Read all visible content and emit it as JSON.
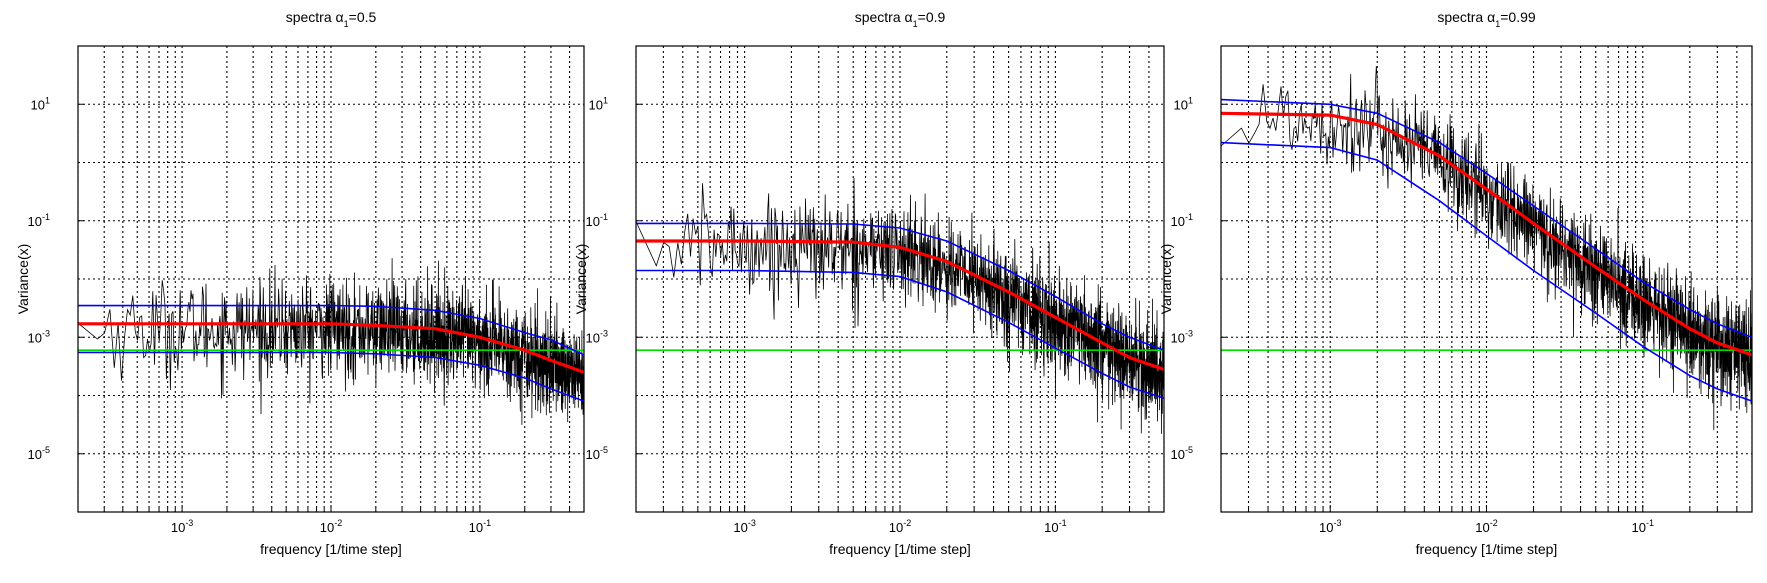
{
  "chart_data": [
    {
      "type": "line",
      "title_prefix": "spectra α",
      "title_sub": "1",
      "title_suffix": "=0.5",
      "xlabel": "frequency [1/time step]",
      "ylabel": "Variance(x)",
      "x_scale": "log",
      "y_scale": "log",
      "xlim": [
        0.0002,
        0.5
      ],
      "ylim": [
        1e-06,
        100
      ],
      "grid": true,
      "xticks": [
        {
          "value": 0.001,
          "base": "10",
          "exp": "-3"
        },
        {
          "value": 0.01,
          "base": "10",
          "exp": "-2"
        },
        {
          "value": 0.1,
          "base": "10",
          "exp": "-1"
        }
      ],
      "yticks": [
        {
          "value": 1e-05,
          "base": "10",
          "exp": "-5"
        },
        {
          "value": 0.001,
          "base": "10",
          "exp": "-3"
        },
        {
          "value": 0.1,
          "base": "10",
          "exp": "-1"
        },
        {
          "value": 10,
          "base": "10",
          "exp": "1"
        }
      ],
      "colors": {
        "theory": "#ff0000",
        "bounds": "#0000ff",
        "reference": "#00dd00",
        "spectrum": "#000000"
      },
      "series": [
        {
          "role": "theoretical",
          "x": [
            0.0002,
            0.001,
            0.01,
            0.02,
            0.05,
            0.1,
            0.2,
            0.3,
            0.5
          ],
          "y": [
            0.0017,
            0.0017,
            0.0017,
            0.0016,
            0.0014,
            0.001,
            0.0006,
            0.0004,
            0.00025
          ]
        },
        {
          "role": "upper-bound",
          "x": [
            0.0002,
            0.001,
            0.01,
            0.02,
            0.05,
            0.1,
            0.2,
            0.3,
            0.5
          ],
          "y": [
            0.0035,
            0.0035,
            0.0035,
            0.0034,
            0.0029,
            0.0021,
            0.0012,
            0.0009,
            0.0005
          ]
        },
        {
          "role": "lower-bound",
          "x": [
            0.0002,
            0.001,
            0.01,
            0.02,
            0.05,
            0.1,
            0.2,
            0.3,
            0.5
          ],
          "y": [
            0.00055,
            0.00055,
            0.00055,
            0.00052,
            0.00045,
            0.00033,
            0.0002,
            0.00013,
            8e-05
          ]
        },
        {
          "role": "reference-level",
          "x": [
            0.0002,
            0.5
          ],
          "y": [
            0.0006,
            0.0006
          ]
        }
      ]
    },
    {
      "type": "line",
      "title_prefix": "spectra α",
      "title_sub": "1",
      "title_suffix": "=0.9",
      "xlabel": "frequency [1/time step]",
      "ylabel": "Variance(x)",
      "x_scale": "log",
      "y_scale": "log",
      "xlim": [
        0.0002,
        0.5
      ],
      "ylim": [
        1e-06,
        100
      ],
      "grid": true,
      "xticks": [
        {
          "value": 0.001,
          "base": "10",
          "exp": "-3"
        },
        {
          "value": 0.01,
          "base": "10",
          "exp": "-2"
        },
        {
          "value": 0.1,
          "base": "10",
          "exp": "-1"
        }
      ],
      "yticks": [
        {
          "value": 1e-05,
          "base": "10",
          "exp": "-5"
        },
        {
          "value": 0.001,
          "base": "10",
          "exp": "-3"
        },
        {
          "value": 0.1,
          "base": "10",
          "exp": "-1"
        },
        {
          "value": 10,
          "base": "10",
          "exp": "1"
        }
      ],
      "colors": {
        "theory": "#ff0000",
        "bounds": "#0000ff",
        "reference": "#00dd00",
        "spectrum": "#000000"
      },
      "series": [
        {
          "role": "theoretical",
          "x": [
            0.0002,
            0.001,
            0.005,
            0.01,
            0.02,
            0.05,
            0.1,
            0.2,
            0.3,
            0.5
          ],
          "y": [
            0.045,
            0.045,
            0.043,
            0.035,
            0.02,
            0.006,
            0.0022,
            0.0008,
            0.00045,
            0.00028
          ]
        },
        {
          "role": "upper-bound",
          "x": [
            0.0002,
            0.001,
            0.005,
            0.01,
            0.02,
            0.05,
            0.1,
            0.2,
            0.3,
            0.5
          ],
          "y": [
            0.09,
            0.09,
            0.088,
            0.075,
            0.045,
            0.014,
            0.005,
            0.0017,
            0.001,
            0.0006
          ]
        },
        {
          "role": "lower-bound",
          "x": [
            0.0002,
            0.001,
            0.005,
            0.01,
            0.02,
            0.05,
            0.1,
            0.2,
            0.3,
            0.5
          ],
          "y": [
            0.014,
            0.014,
            0.013,
            0.011,
            0.006,
            0.0018,
            0.00065,
            0.00024,
            0.00014,
            9e-05
          ]
        },
        {
          "role": "reference-level",
          "x": [
            0.0002,
            0.5
          ],
          "y": [
            0.0006,
            0.0006
          ]
        }
      ]
    },
    {
      "type": "line",
      "title_prefix": "spectra α",
      "title_sub": "1",
      "title_suffix": "=0.99",
      "xlabel": "frequency [1/time step]",
      "ylabel": "Variance(x)",
      "x_scale": "log",
      "y_scale": "log",
      "xlim": [
        0.0002,
        0.5
      ],
      "ylim": [
        1e-06,
        100
      ],
      "grid": true,
      "xticks": [
        {
          "value": 0.001,
          "base": "10",
          "exp": "-3"
        },
        {
          "value": 0.01,
          "base": "10",
          "exp": "-2"
        },
        {
          "value": 0.1,
          "base": "10",
          "exp": "-1"
        }
      ],
      "yticks": [
        {
          "value": 1e-05,
          "base": "10",
          "exp": "-5"
        },
        {
          "value": 0.001,
          "base": "10",
          "exp": "-3"
        },
        {
          "value": 0.1,
          "base": "10",
          "exp": "-1"
        },
        {
          "value": 10,
          "base": "10",
          "exp": "1"
        }
      ],
      "colors": {
        "theory": "#ff0000",
        "bounds": "#0000ff",
        "reference": "#00dd00",
        "spectrum": "#000000"
      },
      "series": [
        {
          "role": "theoretical",
          "x": [
            0.0002,
            0.001,
            0.002,
            0.005,
            0.01,
            0.02,
            0.05,
            0.1,
            0.2,
            0.3,
            0.5
          ],
          "y": [
            7,
            6.5,
            4.5,
            1.3,
            0.35,
            0.09,
            0.016,
            0.0045,
            0.0014,
            0.0008,
            0.0005
          ]
        },
        {
          "role": "upper-bound",
          "x": [
            0.0002,
            0.001,
            0.002,
            0.005,
            0.01,
            0.02,
            0.05,
            0.1,
            0.2,
            0.3,
            0.5
          ],
          "y": [
            12,
            10,
            7,
            2.2,
            0.65,
            0.18,
            0.033,
            0.009,
            0.003,
            0.0017,
            0.001
          ]
        },
        {
          "role": "lower-bound",
          "x": [
            0.0002,
            0.001,
            0.002,
            0.005,
            0.01,
            0.02,
            0.05,
            0.1,
            0.2,
            0.3,
            0.5
          ],
          "y": [
            2.2,
            1.8,
            1.1,
            0.22,
            0.055,
            0.014,
            0.0026,
            0.0007,
            0.00022,
            0.00013,
            8e-05
          ]
        },
        {
          "role": "reference-level",
          "x": [
            0.0002,
            0.5
          ],
          "y": [
            0.0006,
            0.0006
          ]
        }
      ]
    }
  ]
}
